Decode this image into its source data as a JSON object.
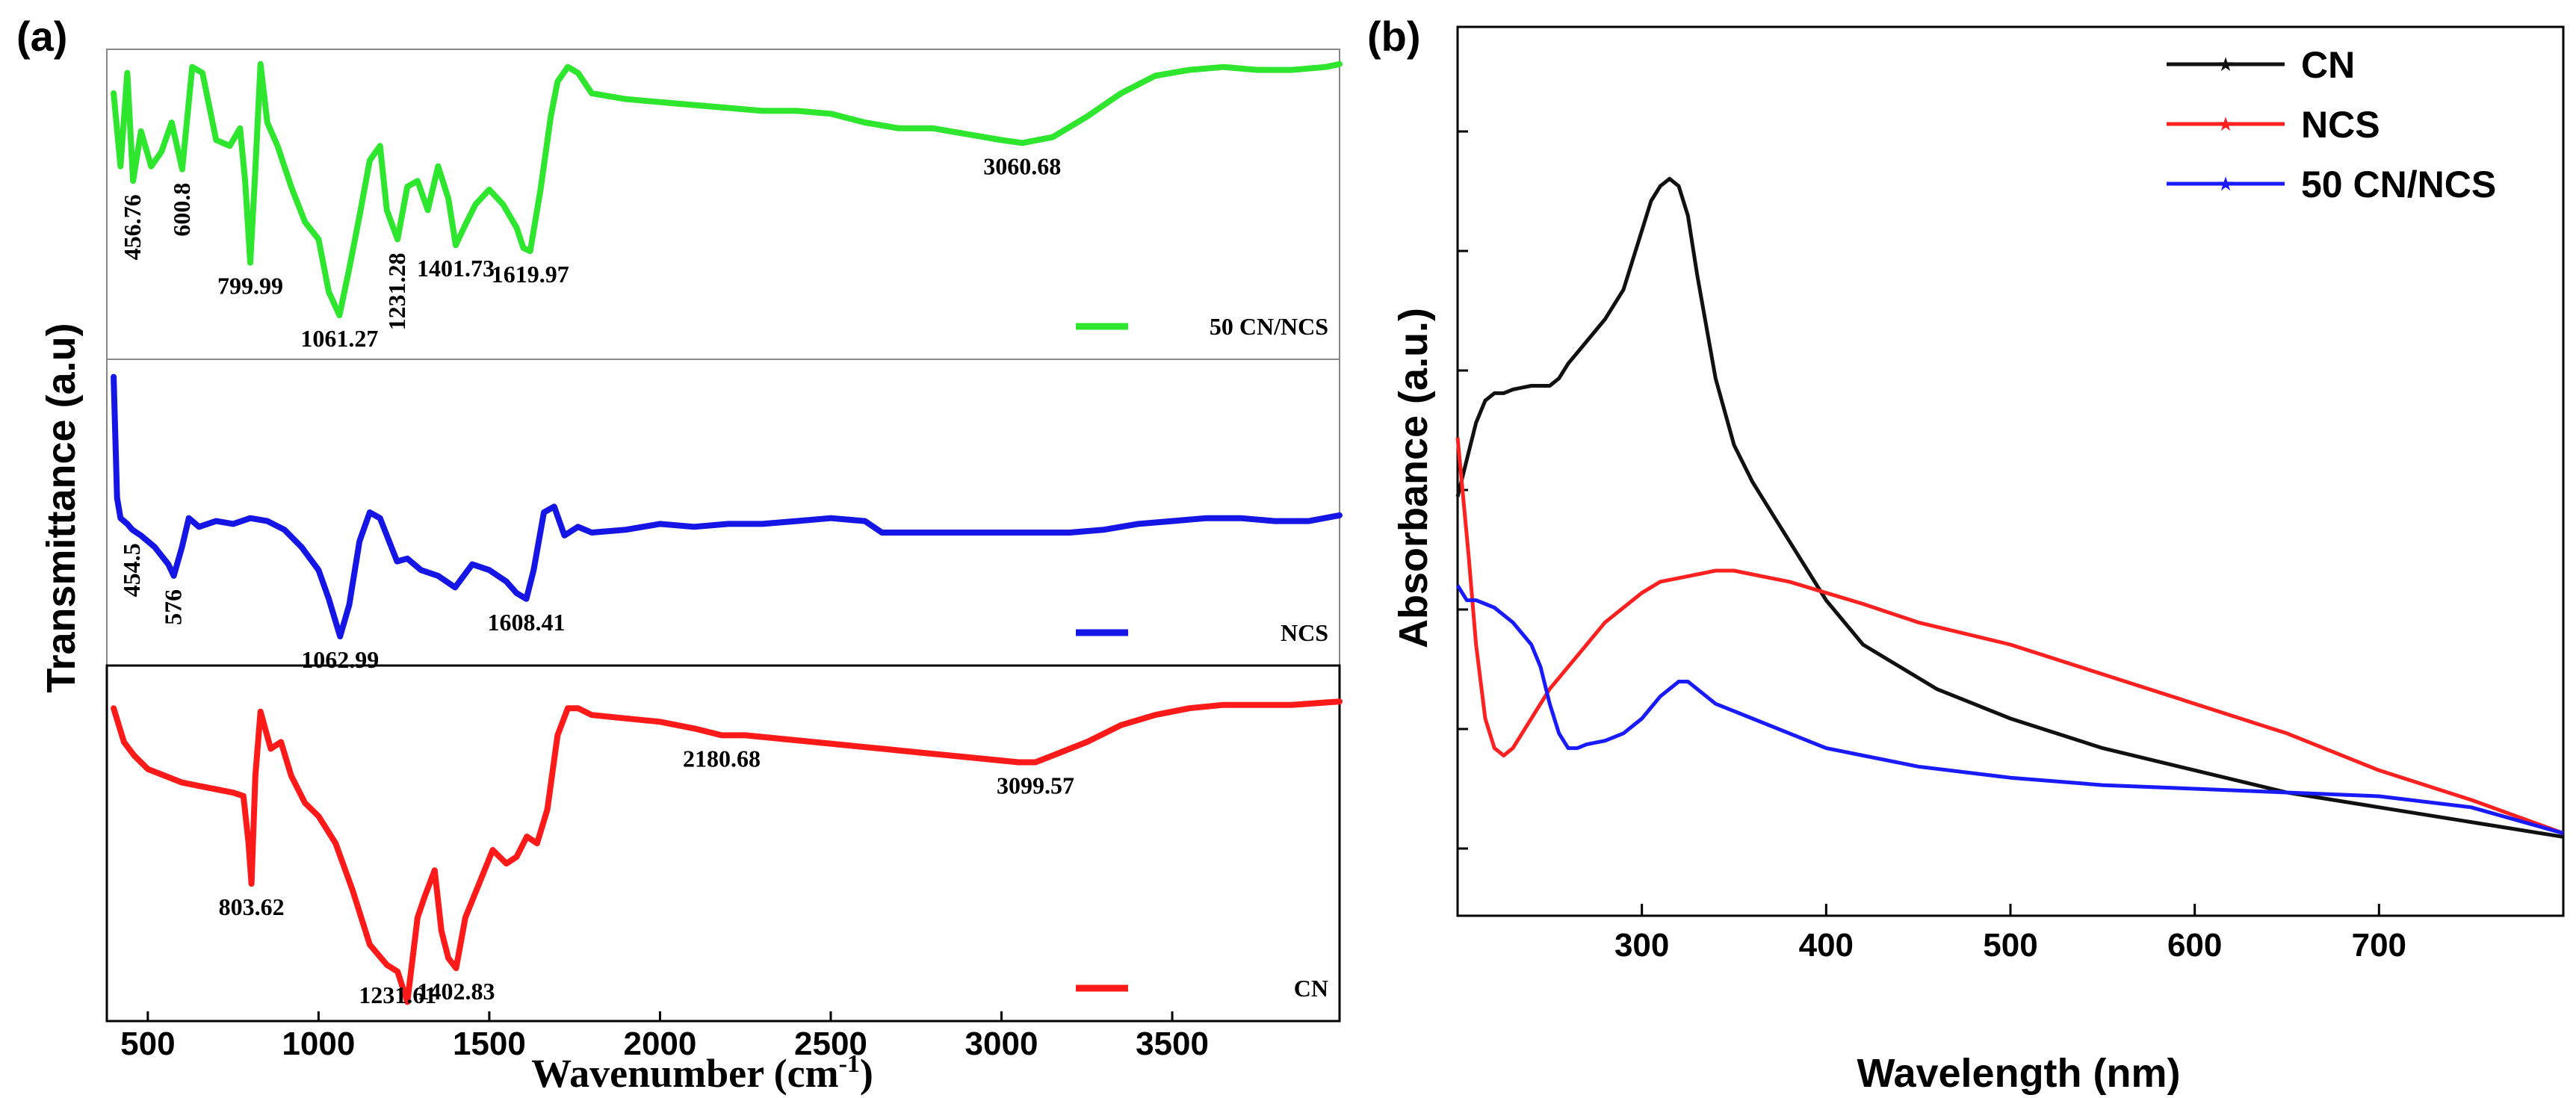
{
  "chart_data": [
    {
      "type": "line",
      "panel_label": "(a)",
      "xlabel": "Wavenumber (cm",
      "xlabel_sup": "-1",
      "xlabel_close": ")",
      "ylabel": "Transmittance (a.u)",
      "xlim": [
        380,
        3990
      ],
      "xticks": [
        500,
        1000,
        1500,
        2000,
        2500,
        3000,
        3500
      ],
      "xtick_labels": [
        "500",
        "1000",
        "1500",
        "2000",
        "2500",
        "3000",
        "3500"
      ],
      "stacked_panels": 3,
      "series": [
        {
          "name": "50 CN/NCS",
          "color": "#2ee62e",
          "panel": 0,
          "x": [
            400,
            420,
            440,
            456.76,
            480,
            510,
            540,
            570,
            600.8,
            630,
            660,
            700,
            740,
            770,
            785,
            799.99,
            815,
            830,
            850,
            880,
            920,
            960,
            1000,
            1030,
            1061.27,
            1090,
            1120,
            1150,
            1180,
            1200,
            1231.28,
            1260,
            1290,
            1320,
            1350,
            1380,
            1401.73,
            1430,
            1460,
            1500,
            1540,
            1580,
            1600,
            1619.97,
            1650,
            1680,
            1700,
            1730,
            1760,
            1800,
            1900,
            2000,
            2100,
            2200,
            2300,
            2400,
            2500,
            2600,
            2700,
            2800,
            2900,
            3000,
            3060.68,
            3150,
            3250,
            3350,
            3450,
            3550,
            3650,
            3750,
            3850,
            3950,
            3990
          ],
          "y": [
            0.88,
            0.63,
            0.95,
            0.58,
            0.75,
            0.63,
            0.68,
            0.78,
            0.62,
            0.97,
            0.95,
            0.72,
            0.7,
            0.76,
            0.58,
            0.3,
            0.62,
            0.98,
            0.78,
            0.7,
            0.56,
            0.44,
            0.38,
            0.2,
            0.12,
            0.28,
            0.46,
            0.65,
            0.7,
            0.48,
            0.38,
            0.56,
            0.58,
            0.48,
            0.63,
            0.52,
            0.36,
            0.43,
            0.5,
            0.55,
            0.5,
            0.42,
            0.35,
            0.34,
            0.55,
            0.8,
            0.92,
            0.97,
            0.95,
            0.88,
            0.86,
            0.85,
            0.84,
            0.83,
            0.82,
            0.82,
            0.81,
            0.78,
            0.76,
            0.76,
            0.74,
            0.72,
            0.71,
            0.73,
            0.8,
            0.88,
            0.94,
            0.96,
            0.97,
            0.96,
            0.96,
            0.97,
            0.98
          ],
          "annotations": [
            {
              "text": "456.76",
              "x": 456.76,
              "vertical": true
            },
            {
              "text": "600.8",
              "x": 600.8,
              "vertical": true
            },
            {
              "text": "799.99",
              "x": 799.99
            },
            {
              "text": "1061.27",
              "x": 1061.27
            },
            {
              "text": "1231.28",
              "x": 1231.28,
              "vertical": true
            },
            {
              "text": "1401.73",
              "x": 1401.73
            },
            {
              "text": "1619.97",
              "x": 1619.97
            },
            {
              "text": "3060.68",
              "x": 3060.68
            }
          ]
        },
        {
          "name": "NCS",
          "color": "#1515e6",
          "panel": 1,
          "x": [
            400,
            410,
            420,
            440,
            454.5,
            480,
            520,
            560,
            576,
            600,
            620,
            650,
            700,
            750,
            800,
            850,
            900,
            950,
            1000,
            1030,
            1062.99,
            1090,
            1120,
            1150,
            1180,
            1200,
            1230,
            1260,
            1300,
            1350,
            1400,
            1450,
            1500,
            1550,
            1580,
            1608.41,
            1630,
            1660,
            1690,
            1720,
            1760,
            1800,
            1900,
            2000,
            2100,
            2200,
            2300,
            2400,
            2500,
            2600,
            2650,
            2700,
            2800,
            2900,
            3000,
            3100,
            3200,
            3300,
            3400,
            3500,
            3600,
            3700,
            3800,
            3900,
            3990
          ],
          "y": [
            0.97,
            0.55,
            0.48,
            0.46,
            0.44,
            0.42,
            0.38,
            0.32,
            0.28,
            0.38,
            0.48,
            0.45,
            0.47,
            0.46,
            0.48,
            0.47,
            0.44,
            0.38,
            0.3,
            0.2,
            0.07,
            0.18,
            0.4,
            0.5,
            0.48,
            0.42,
            0.33,
            0.34,
            0.3,
            0.28,
            0.24,
            0.32,
            0.3,
            0.26,
            0.22,
            0.2,
            0.3,
            0.5,
            0.52,
            0.42,
            0.45,
            0.43,
            0.44,
            0.46,
            0.45,
            0.46,
            0.46,
            0.47,
            0.48,
            0.47,
            0.43,
            0.43,
            0.43,
            0.43,
            0.43,
            0.43,
            0.43,
            0.44,
            0.46,
            0.47,
            0.48,
            0.48,
            0.47,
            0.47,
            0.49
          ],
          "annotations": [
            {
              "text": "454.5",
              "x": 454.5,
              "vertical": true
            },
            {
              "text": "576",
              "x": 576,
              "vertical": true
            },
            {
              "text": "1062.99",
              "x": 1062.99
            },
            {
              "text": "1608.41",
              "x": 1608.41
            }
          ]
        },
        {
          "name": "CN",
          "color": "#ff1a1a",
          "panel": 2,
          "x": [
            400,
            430,
            460,
            500,
            550,
            600,
            650,
            700,
            750,
            780,
            795,
            803.62,
            815,
            830,
            860,
            890,
            920,
            960,
            1000,
            1050,
            1100,
            1150,
            1200,
            1231.61,
            1260,
            1290,
            1310,
            1340,
            1360,
            1380,
            1402.83,
            1430,
            1470,
            1510,
            1550,
            1580,
            1610,
            1640,
            1670,
            1700,
            1730,
            1760,
            1800,
            1900,
            2000,
            2100,
            2180.68,
            2250,
            2350,
            2450,
            2550,
            2650,
            2750,
            2850,
            2950,
            3050,
            3099.57,
            3150,
            3250,
            3350,
            3450,
            3550,
            3650,
            3750,
            3850,
            3990
          ],
          "y": [
            0.9,
            0.8,
            0.76,
            0.72,
            0.7,
            0.68,
            0.67,
            0.66,
            0.65,
            0.64,
            0.5,
            0.38,
            0.7,
            0.89,
            0.78,
            0.8,
            0.7,
            0.62,
            0.58,
            0.5,
            0.36,
            0.2,
            0.14,
            0.12,
            0.03,
            0.28,
            0.34,
            0.42,
            0.24,
            0.16,
            0.13,
            0.28,
            0.38,
            0.48,
            0.44,
            0.46,
            0.52,
            0.5,
            0.6,
            0.82,
            0.9,
            0.9,
            0.88,
            0.87,
            0.86,
            0.84,
            0.82,
            0.82,
            0.81,
            0.8,
            0.79,
            0.78,
            0.77,
            0.76,
            0.75,
            0.74,
            0.74,
            0.76,
            0.8,
            0.85,
            0.88,
            0.9,
            0.91,
            0.91,
            0.91,
            0.92
          ],
          "annotations": [
            {
              "text": "803.62",
              "x": 803.62
            },
            {
              "text": "1231.61",
              "x": 1231.61
            },
            {
              "text": "1402.83",
              "x": 1402.83
            },
            {
              "text": "2180.68",
              "x": 2180.68
            },
            {
              "text": "3099.57",
              "x": 3099.57
            }
          ]
        }
      ],
      "legend": [
        {
          "name": "50 CN/NCS",
          "color": "#2ee62e",
          "panel": 0
        },
        {
          "name": "NCS",
          "color": "#1515e6",
          "panel": 1
        },
        {
          "name": "CN",
          "color": "#ff1a1a",
          "panel": 2
        }
      ]
    },
    {
      "type": "line",
      "panel_label": "(b)",
      "xlabel": "Wavelength (nm)",
      "ylabel": "Absorbance (a.u.)",
      "xlim": [
        200,
        800
      ],
      "ylim": [
        0,
        1
      ],
      "xticks": [
        300,
        400,
        500,
        600,
        700
      ],
      "xtick_labels": [
        "300",
        "400",
        "500",
        "600",
        "700"
      ],
      "legend_position": "top-right",
      "marker": "star",
      "series": [
        {
          "name": "CN",
          "color": "#111111",
          "x": [
            200,
            205,
            210,
            215,
            220,
            225,
            230,
            240,
            250,
            255,
            260,
            270,
            280,
            290,
            300,
            305,
            310,
            315,
            320,
            325,
            330,
            340,
            350,
            360,
            370,
            380,
            390,
            400,
            420,
            440,
            460,
            480,
            500,
            550,
            600,
            650,
            700,
            750,
            800
          ],
          "y": [
            0.5,
            0.55,
            0.6,
            0.63,
            0.64,
            0.64,
            0.645,
            0.65,
            0.65,
            0.66,
            0.68,
            0.71,
            0.74,
            0.78,
            0.86,
            0.9,
            0.92,
            0.93,
            0.92,
            0.88,
            0.8,
            0.66,
            0.57,
            0.52,
            0.48,
            0.44,
            0.4,
            0.36,
            0.3,
            0.27,
            0.24,
            0.22,
            0.2,
            0.16,
            0.13,
            0.1,
            0.08,
            0.06,
            0.04
          ]
        },
        {
          "name": "NCS",
          "color": "#ff2020",
          "x": [
            200,
            203,
            206,
            210,
            215,
            220,
            225,
            230,
            235,
            240,
            250,
            260,
            270,
            280,
            290,
            300,
            310,
            320,
            330,
            340,
            350,
            360,
            370,
            380,
            400,
            420,
            450,
            500,
            550,
            600,
            650,
            700,
            750,
            800
          ],
          "y": [
            0.58,
            0.5,
            0.42,
            0.3,
            0.2,
            0.16,
            0.15,
            0.16,
            0.18,
            0.2,
            0.24,
            0.27,
            0.3,
            0.33,
            0.35,
            0.37,
            0.385,
            0.39,
            0.395,
            0.4,
            0.4,
            0.395,
            0.39,
            0.385,
            0.37,
            0.355,
            0.33,
            0.3,
            0.26,
            0.22,
            0.18,
            0.13,
            0.09,
            0.045
          ]
        },
        {
          "name": "50 CN/NCS",
          "color": "#1a1aff",
          "x": [
            200,
            205,
            210,
            215,
            220,
            230,
            240,
            245,
            250,
            255,
            260,
            265,
            270,
            280,
            290,
            300,
            310,
            320,
            325,
            330,
            340,
            350,
            360,
            380,
            400,
            420,
            450,
            500,
            550,
            600,
            650,
            700,
            750,
            800
          ],
          "y": [
            0.38,
            0.36,
            0.36,
            0.355,
            0.35,
            0.33,
            0.3,
            0.27,
            0.22,
            0.18,
            0.16,
            0.16,
            0.165,
            0.17,
            0.18,
            0.2,
            0.23,
            0.25,
            0.25,
            0.24,
            0.22,
            0.21,
            0.2,
            0.18,
            0.16,
            0.15,
            0.135,
            0.12,
            0.11,
            0.105,
            0.1,
            0.095,
            0.08,
            0.045
          ]
        }
      ],
      "legend": [
        {
          "name": "CN",
          "color": "#111111"
        },
        {
          "name": "NCS",
          "color": "#ff2020"
        },
        {
          "name": "50 CN/NCS",
          "color": "#1a1aff"
        }
      ]
    }
  ]
}
